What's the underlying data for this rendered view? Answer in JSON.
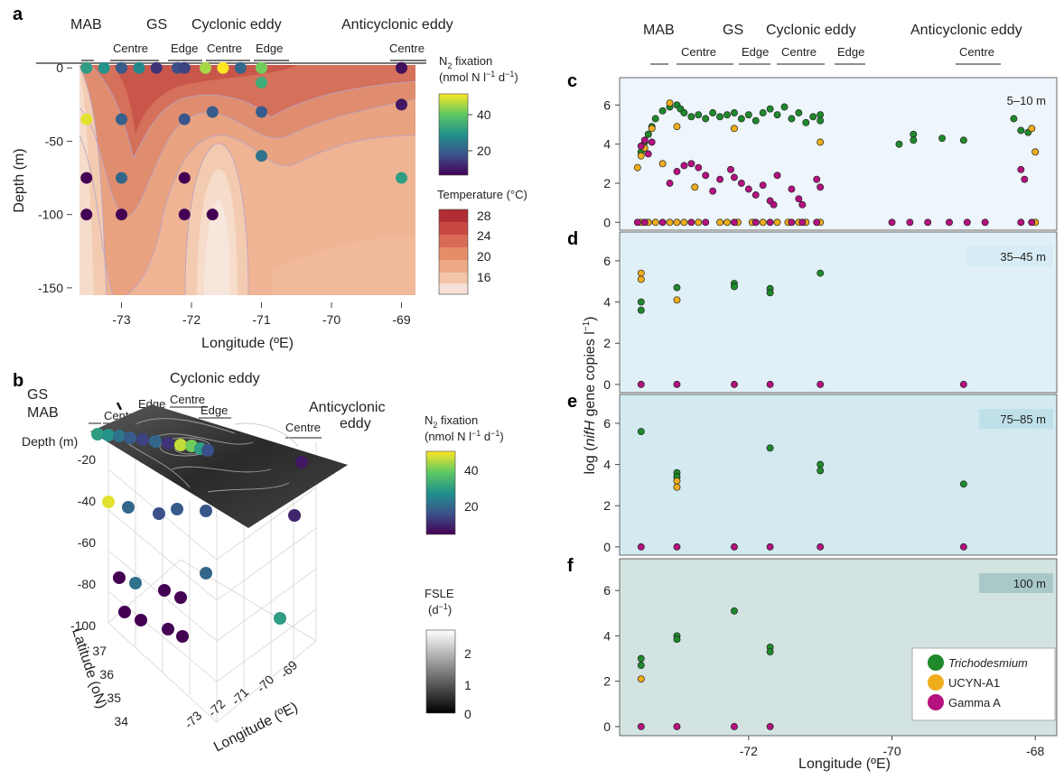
{
  "colors": {
    "trich": "#1e8a2b",
    "ucyn": "#f0ad1b",
    "gamma": "#b5117f",
    "panel_c_bg": "#eef5fb",
    "panel_d_bg": "#e0f0f6",
    "panel_e_bg": "#d2eaf0",
    "panel_f_bg": "#d3e3e1"
  },
  "panel_a": {
    "letter": "a",
    "regions": [
      "MAB",
      "GS",
      "Cyclonic eddy",
      "Anticyclonic eddy"
    ],
    "sub_labels": [
      "Centre",
      "Edge",
      "Centre",
      "Edge",
      "Centre"
    ],
    "xlabel": "Longitude (ºE)",
    "ylabel": "Depth (m)",
    "xticks": [
      "-73",
      "-72",
      "-71",
      "-70",
      "-69"
    ],
    "yticks": [
      "0",
      "-50",
      "-100",
      "-150"
    ],
    "n2_title_1": "N",
    "n2_title_sub": "2",
    "n2_title_2": " fixation",
    "n2_units": "(nmol N l",
    "n2_units_sup1": "−1",
    "n2_units_mid": " d",
    "n2_units_sup2": "−1",
    "n2_units_end": ")",
    "n2_ticks": [
      "40",
      "20"
    ],
    "temp_title": "Temperature (°C)",
    "temp_ticks": [
      "28",
      "24",
      "20",
      "16"
    ]
  },
  "panel_b": {
    "letter": "b",
    "regions": {
      "gs": "GS",
      "mab": "MAB",
      "cyclonic": "Cyclonic eddy",
      "anti_1": "Anticyclonic",
      "anti_2": "eddy"
    },
    "sub_labels": [
      "Centre",
      "Edge",
      "Centre",
      "Edge",
      "Centre"
    ],
    "depth_label": "Depth (m)",
    "zticks": [
      "-20",
      "-40",
      "-60",
      "-80",
      "-100"
    ],
    "latticks": [
      "37",
      "36",
      "35",
      "34"
    ],
    "lonticks": [
      "-73",
      "-72",
      "-71",
      "-70",
      "-69"
    ],
    "lat_label": "Latitude (oN)",
    "lon_label": "Longitude (ºE)",
    "n2_title_1": "N",
    "n2_title_sub": "2",
    "n2_title_2": " fixation",
    "n2_units": "(nmol N l",
    "n2_units_sup1": "−1",
    "n2_units_mid": " d",
    "n2_units_sup2": "−1",
    "n2_units_end": ")",
    "n2_ticks": [
      "40",
      "20"
    ],
    "fsle_title": "FSLE",
    "fsle_units": "(d",
    "fsle_units_sup": "−1",
    "fsle_units_end": ")",
    "fsle_ticks": [
      "2",
      "1",
      "0"
    ]
  },
  "right": {
    "regions": [
      "MAB",
      "GS",
      "Cyclonic eddy",
      "Anticyclonic eddy"
    ],
    "sub_labels": [
      "Centre",
      "Edge",
      "Centre",
      "Edge",
      "Centre"
    ],
    "ylabel_1": "log (",
    "ylabel_italic": "nifH",
    "ylabel_2": " gene copies l",
    "ylabel_sup": "−1",
    "ylabel_3": ")",
    "xlabel": "Longitude (ºE)",
    "xticks": [
      "-72",
      "-70",
      "-68"
    ],
    "yticks": [
      "0",
      "2",
      "4",
      "6"
    ],
    "letters": [
      "c",
      "d",
      "e",
      "f"
    ],
    "depth_tags": [
      "5–10 m",
      "35–45 m",
      "75–85 m",
      "100 m"
    ],
    "legend": [
      "Trichodesmium",
      "UCYN-A1",
      "Gamma A"
    ]
  },
  "chart_data": [
    {
      "type": "scatter",
      "panel": "a",
      "title": "",
      "xlabel": "Longitude (ºE)",
      "ylabel": "Depth (m)",
      "xlim": [
        -73.6,
        -68.8
      ],
      "ylim": [
        -155,
        2
      ],
      "background": "Temperature (°C) contour, 14–28",
      "colorscale": "N2 fixation (nmol N l−1 d−1), 5–50",
      "points": [
        {
          "x": -73.5,
          "y": 0,
          "n2": 30
        },
        {
          "x": -73.25,
          "y": 0,
          "n2": 28
        },
        {
          "x": -73.0,
          "y": 0,
          "n2": 18
        },
        {
          "x": -72.75,
          "y": 0,
          "n2": 26
        },
        {
          "x": -72.5,
          "y": 0,
          "n2": 12
        },
        {
          "x": -72.2,
          "y": 0,
          "n2": 16
        },
        {
          "x": -72.1,
          "y": 0,
          "n2": 14
        },
        {
          "x": -71.8,
          "y": 0,
          "n2": 44
        },
        {
          "x": -71.55,
          "y": 0,
          "n2": 50
        },
        {
          "x": -71.3,
          "y": 0,
          "n2": 20
        },
        {
          "x": -71.0,
          "y": 0,
          "n2": 40
        },
        {
          "x": -71.0,
          "y": -10,
          "n2": 33
        },
        {
          "x": -69.0,
          "y": 0,
          "n2": 7
        },
        {
          "x": -73.5,
          "y": -35,
          "n2": 48
        },
        {
          "x": -73.0,
          "y": -35,
          "n2": 19
        },
        {
          "x": -72.1,
          "y": -35,
          "n2": 17
        },
        {
          "x": -71.7,
          "y": -30,
          "n2": 18
        },
        {
          "x": -71.0,
          "y": -30,
          "n2": 18
        },
        {
          "x": -69.0,
          "y": -25,
          "n2": 8
        },
        {
          "x": -71.0,
          "y": -60,
          "n2": 22
        },
        {
          "x": -73.5,
          "y": -75,
          "n2": 4
        },
        {
          "x": -73.0,
          "y": -75,
          "n2": 20
        },
        {
          "x": -72.1,
          "y": -75,
          "n2": 5
        },
        {
          "x": -69.0,
          "y": -75,
          "n2": 30
        },
        {
          "x": -73.5,
          "y": -100,
          "n2": 4
        },
        {
          "x": -73.0,
          "y": -100,
          "n2": 4
        },
        {
          "x": -72.1,
          "y": -100,
          "n2": 4
        },
        {
          "x": -71.7,
          "y": -100,
          "n2": 4
        }
      ]
    },
    {
      "type": "scatter",
      "panel": "b",
      "title": "",
      "description_axes": [
        "Longitude (ºE)",
        "Latitude (oN)",
        "Depth (m)"
      ],
      "colorscale": "N2 fixation (nmol N l−1 d−1)",
      "surface": "FSLE (d−1), 0–2.5"
    },
    {
      "type": "scatter",
      "panel": "c",
      "title": "",
      "depth": "5–10 m",
      "xlim": [
        -73.8,
        -67.7
      ],
      "ylim": [
        -0.4,
        7.4
      ],
      "series": [
        {
          "name": "Trichodesmium",
          "points": [
            [
              -73.5,
              3.6
            ],
            [
              -73.45,
              4.1
            ],
            [
              -73.4,
              4.5
            ],
            [
              -73.35,
              4.9
            ],
            [
              -73.3,
              5.3
            ],
            [
              -73.2,
              5.7
            ],
            [
              -73.1,
              5.9
            ],
            [
              -73.0,
              6.0
            ],
            [
              -72.95,
              5.8
            ],
            [
              -72.9,
              5.6
            ],
            [
              -72.8,
              5.4
            ],
            [
              -72.7,
              5.5
            ],
            [
              -72.6,
              5.3
            ],
            [
              -72.5,
              5.6
            ],
            [
              -72.4,
              5.4
            ],
            [
              -72.3,
              5.5
            ],
            [
              -72.2,
              5.6
            ],
            [
              -72.1,
              5.3
            ],
            [
              -72.0,
              5.5
            ],
            [
              -71.9,
              5.2
            ],
            [
              -71.8,
              5.6
            ],
            [
              -71.7,
              5.8
            ],
            [
              -71.6,
              5.5
            ],
            [
              -71.5,
              5.9
            ],
            [
              -71.4,
              5.3
            ],
            [
              -71.3,
              5.6
            ],
            [
              -71.2,
              5.1
            ],
            [
              -71.1,
              5.4
            ],
            [
              -71.0,
              5.5
            ],
            [
              -71.0,
              5.2
            ],
            [
              -69.9,
              4.0
            ],
            [
              -69.7,
              4.5
            ],
            [
              -69.7,
              4.2
            ],
            [
              -69.3,
              4.3
            ],
            [
              -69.0,
              4.2
            ],
            [
              -68.3,
              5.3
            ],
            [
              -68.2,
              4.7
            ],
            [
              -68.1,
              4.6
            ]
          ]
        },
        {
          "name": "UCYN-A1",
          "points": [
            [
              -73.55,
              2.8
            ],
            [
              -73.5,
              3.4
            ],
            [
              -73.45,
              3.8
            ],
            [
              -73.35,
              4.8
            ],
            [
              -73.2,
              3.0
            ],
            [
              -73.1,
              6.1
            ],
            [
              -73.0,
              4.9
            ],
            [
              -72.75,
              1.8
            ],
            [
              -72.2,
              4.8
            ],
            [
              -71.0,
              4.1
            ],
            [
              -68.05,
              4.8
            ],
            [
              -68.0,
              3.6
            ],
            [
              -73.5,
              0
            ],
            [
              -73.4,
              0
            ],
            [
              -73.3,
              0
            ],
            [
              -73.1,
              0
            ],
            [
              -73.0,
              0
            ],
            [
              -72.9,
              0
            ],
            [
              -72.7,
              0
            ],
            [
              -72.4,
              0
            ],
            [
              -72.3,
              0
            ],
            [
              -72.15,
              0
            ],
            [
              -71.95,
              0
            ],
            [
              -71.8,
              0
            ],
            [
              -71.6,
              0
            ],
            [
              -71.45,
              0
            ],
            [
              -71.3,
              0
            ],
            [
              -71.2,
              0
            ],
            [
              -71.0,
              0
            ],
            [
              -68.0,
              0
            ]
          ]
        },
        {
          "name": "Gamma A",
          "points": [
            [
              -73.5,
              3.9
            ],
            [
              -73.45,
              4.2
            ],
            [
              -73.4,
              3.5
            ],
            [
              -73.35,
              4.1
            ],
            [
              -73.1,
              2.0
            ],
            [
              -73.0,
              2.6
            ],
            [
              -72.9,
              2.9
            ],
            [
              -72.8,
              3.0
            ],
            [
              -72.7,
              2.8
            ],
            [
              -72.6,
              2.4
            ],
            [
              -72.5,
              1.6
            ],
            [
              -72.4,
              2.2
            ],
            [
              -72.25,
              2.7
            ],
            [
              -72.2,
              2.3
            ],
            [
              -72.1,
              2.0
            ],
            [
              -72.0,
              1.7
            ],
            [
              -71.9,
              1.4
            ],
            [
              -71.8,
              1.9
            ],
            [
              -71.7,
              1.1
            ],
            [
              -71.65,
              0.9
            ],
            [
              -71.6,
              2.4
            ],
            [
              -71.4,
              1.7
            ],
            [
              -71.3,
              1.2
            ],
            [
              -71.25,
              0.9
            ],
            [
              -71.05,
              2.2
            ],
            [
              -71.0,
              1.8
            ],
            [
              -68.2,
              2.7
            ],
            [
              -68.15,
              2.2
            ],
            [
              -73.55,
              0
            ],
            [
              -73.45,
              0
            ],
            [
              -73.2,
              0
            ],
            [
              -72.8,
              0
            ],
            [
              -72.6,
              0
            ],
            [
              -72.2,
              0
            ],
            [
              -71.9,
              0
            ],
            [
              -71.7,
              0
            ],
            [
              -71.4,
              0
            ],
            [
              -71.25,
              0
            ],
            [
              -71.05,
              0
            ],
            [
              -70.0,
              0
            ],
            [
              -69.75,
              0
            ],
            [
              -69.5,
              0
            ],
            [
              -69.2,
              0
            ],
            [
              -68.95,
              0
            ],
            [
              -68.7,
              0
            ],
            [
              -68.2,
              0
            ],
            [
              -68.05,
              0
            ]
          ]
        }
      ]
    },
    {
      "type": "scatter",
      "panel": "d",
      "title": "",
      "depth": "35–45 m",
      "xlim": [
        -73.8,
        -67.7
      ],
      "ylim": [
        -0.4,
        7.4
      ],
      "series": [
        {
          "name": "Trichodesmium",
          "points": [
            [
              -73.5,
              4.0
            ],
            [
              -73.5,
              3.6
            ],
            [
              -73.0,
              4.7
            ],
            [
              -72.2,
              4.9
            ],
            [
              -72.2,
              4.75
            ],
            [
              -71.7,
              4.65
            ],
            [
              -71.7,
              4.45
            ],
            [
              -71.0,
              5.4
            ]
          ]
        },
        {
          "name": "UCYN-A1",
          "points": [
            [
              -73.5,
              5.4
            ],
            [
              -73.5,
              5.1
            ],
            [
              -73.0,
              4.1
            ]
          ]
        },
        {
          "name": "Gamma A",
          "points": [
            [
              -73.5,
              0
            ],
            [
              -73.0,
              0
            ],
            [
              -72.2,
              0
            ],
            [
              -71.7,
              0
            ],
            [
              -71.0,
              0
            ],
            [
              -69.0,
              0
            ]
          ]
        }
      ]
    },
    {
      "type": "scatter",
      "panel": "e",
      "title": "",
      "depth": "75–85 m",
      "xlim": [
        -73.8,
        -67.7
      ],
      "ylim": [
        -0.4,
        7.4
      ],
      "series": [
        {
          "name": "Trichodesmium",
          "points": [
            [
              -73.5,
              5.6
            ],
            [
              -73.0,
              3.6
            ],
            [
              -73.0,
              3.4
            ],
            [
              -71.7,
              4.8
            ],
            [
              -71.0,
              4.0
            ],
            [
              -71.0,
              3.7
            ],
            [
              -69.0,
              3.05
            ]
          ]
        },
        {
          "name": "UCYN-A1",
          "points": [
            [
              -73.0,
              3.2
            ],
            [
              -73.0,
              2.9
            ]
          ]
        },
        {
          "name": "Gamma A",
          "points": [
            [
              -73.5,
              0
            ],
            [
              -73.0,
              0
            ],
            [
              -72.2,
              0
            ],
            [
              -71.7,
              0
            ],
            [
              -71.0,
              0
            ],
            [
              -69.0,
              0
            ]
          ]
        }
      ]
    },
    {
      "type": "scatter",
      "panel": "f",
      "title": "",
      "depth": "100 m",
      "xlim": [
        -73.8,
        -67.7
      ],
      "ylim": [
        -0.4,
        7.4
      ],
      "series": [
        {
          "name": "Trichodesmium",
          "points": [
            [
              -73.5,
              3.0
            ],
            [
              -73.5,
              2.7
            ],
            [
              -73.0,
              4.0
            ],
            [
              -73.0,
              3.85
            ],
            [
              -72.2,
              5.1
            ],
            [
              -71.7,
              3.5
            ],
            [
              -71.7,
              3.3
            ]
          ]
        },
        {
          "name": "UCYN-A1",
          "points": [
            [
              -73.5,
              2.1
            ]
          ]
        },
        {
          "name": "Gamma A",
          "points": [
            [
              -73.5,
              0
            ],
            [
              -73.0,
              0
            ],
            [
              -72.2,
              0
            ],
            [
              -71.7,
              0
            ]
          ]
        }
      ]
    }
  ]
}
